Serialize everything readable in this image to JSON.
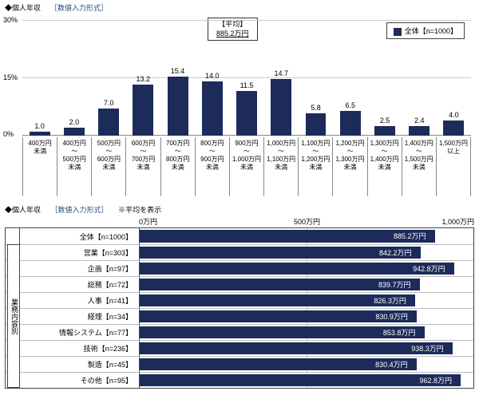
{
  "top": {
    "title": "◆個人年収",
    "subtitle": "［数値入力形式］",
    "legend": "全体【n=1000】",
    "avg_label": "【平均】",
    "avg_value": "885.2万円",
    "ylim": [
      0,
      30
    ],
    "yticks": [
      0,
      15,
      30
    ],
    "ytick_labels": [
      "0%",
      "15%",
      "30%"
    ],
    "bar_color": "#1c2b5a",
    "grid_color": "#cccccc",
    "categories": [
      "400万円\n未満",
      "400万円\n～\n500万円\n未満",
      "500万円\n～\n600万円\n未満",
      "600万円\n～\n700万円\n未満",
      "700万円\n～\n800万円\n未満",
      "800万円\n～\n900万円\n未満",
      "900万円\n～\n1,000万円\n未満",
      "1,000万円\n～\n1,100万円\n未満",
      "1,100万円\n～\n1,200万円\n未満",
      "1,200万円\n～\n1,300万円\n未満",
      "1,300万円\n～\n1,400万円\n未満",
      "1,400万円\n～\n1,500万円\n未満",
      "1,500万円\n以上"
    ],
    "values": [
      1.0,
      2.0,
      7.0,
      13.2,
      15.4,
      14.0,
      11.5,
      14.7,
      5.8,
      6.5,
      2.5,
      2.4,
      4.0
    ]
  },
  "bottom": {
    "title": "◆個人年収",
    "sub1": "［数値入力形式］",
    "sub2": "※平均を表示",
    "axis_labels": [
      "0万円",
      "500万円",
      "1,000万円"
    ],
    "xlim": [
      0,
      1000
    ],
    "bar_color": "#1c2b5a",
    "category_label": "業務内容別",
    "rows": [
      {
        "label": "全体【n=1000】",
        "value": 885.2,
        "text": "885.2万円",
        "group": "all"
      },
      {
        "label": "営業【n=303】",
        "value": 842.2,
        "text": "842.2万円",
        "group": "cat"
      },
      {
        "label": "企画【n=97】",
        "value": 942.8,
        "text": "942.8万円",
        "group": "cat"
      },
      {
        "label": "総務【n=72】",
        "value": 839.7,
        "text": "839.7万円",
        "group": "cat"
      },
      {
        "label": "人事【n=41】",
        "value": 826.3,
        "text": "826.3万円",
        "group": "cat"
      },
      {
        "label": "経理【n=34】",
        "value": 830.9,
        "text": "830.9万円",
        "group": "cat"
      },
      {
        "label": "情報システム【n=77】",
        "value": 853.8,
        "text": "853.8万円",
        "group": "cat"
      },
      {
        "label": "技術【n=236】",
        "value": 938.3,
        "text": "938.3万円",
        "group": "cat"
      },
      {
        "label": "製造【n=45】",
        "value": 830.4,
        "text": "830.4万円",
        "group": "cat"
      },
      {
        "label": "その他【n=95】",
        "value": 962.8,
        "text": "962.8万円",
        "group": "cat"
      }
    ]
  }
}
